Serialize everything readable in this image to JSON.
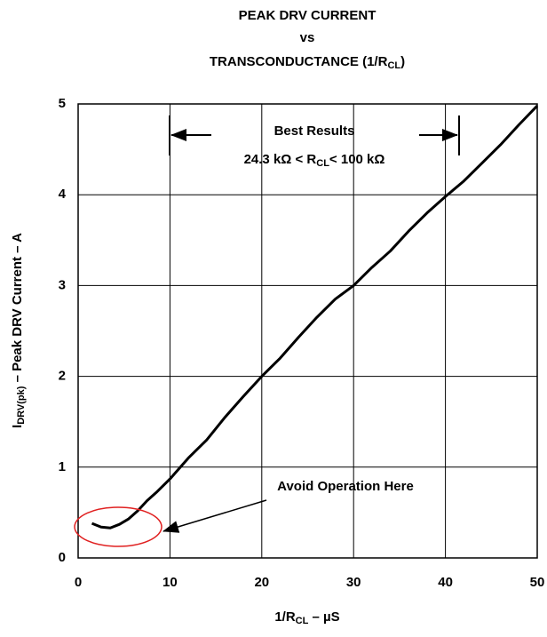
{
  "chart_data": {
    "type": "line",
    "title": [
      "PEAK DRV CURRENT",
      "vs",
      "TRANSCONDUCTANCE (1/R",
      "CL",
      ")"
    ],
    "xlabel": [
      "1/R",
      "CL",
      " – µS"
    ],
    "ylabel": [
      "I",
      "DRV(pk)",
      " – Peak DRV Current – A"
    ],
    "annotations": {
      "best": [
        "Best Results",
        "24.3  kΩ < R",
        "CL",
        "< 100 kΩ"
      ],
      "avoid": "Avoid Operation Here"
    },
    "x": [
      1.5,
      2.5,
      3.5,
      4.5,
      5.5,
      6.5,
      7.5,
      8.5,
      10,
      12,
      14,
      16,
      18,
      20,
      22,
      24,
      26,
      28,
      30,
      32,
      34,
      36,
      38,
      40,
      42,
      44,
      46,
      48,
      50
    ],
    "series": [
      {
        "name": "I",
        "color": "#000000",
        "values": [
          0.38,
          0.34,
          0.33,
          0.37,
          0.43,
          0.52,
          0.63,
          0.72,
          0.87,
          1.1,
          1.3,
          1.55,
          1.78,
          2.0,
          2.2,
          2.43,
          2.65,
          2.85,
          3.0,
          3.2,
          3.38,
          3.6,
          3.8,
          3.98,
          4.15,
          4.35,
          4.55,
          4.77,
          4.98
        ]
      }
    ],
    "xlim": [
      0,
      50
    ],
    "xticks": [
      0,
      10,
      20,
      30,
      40,
      50
    ],
    "ylim": [
      0,
      5
    ],
    "yticks": [
      0,
      1,
      2,
      3,
      4,
      5
    ],
    "grid": true
  }
}
